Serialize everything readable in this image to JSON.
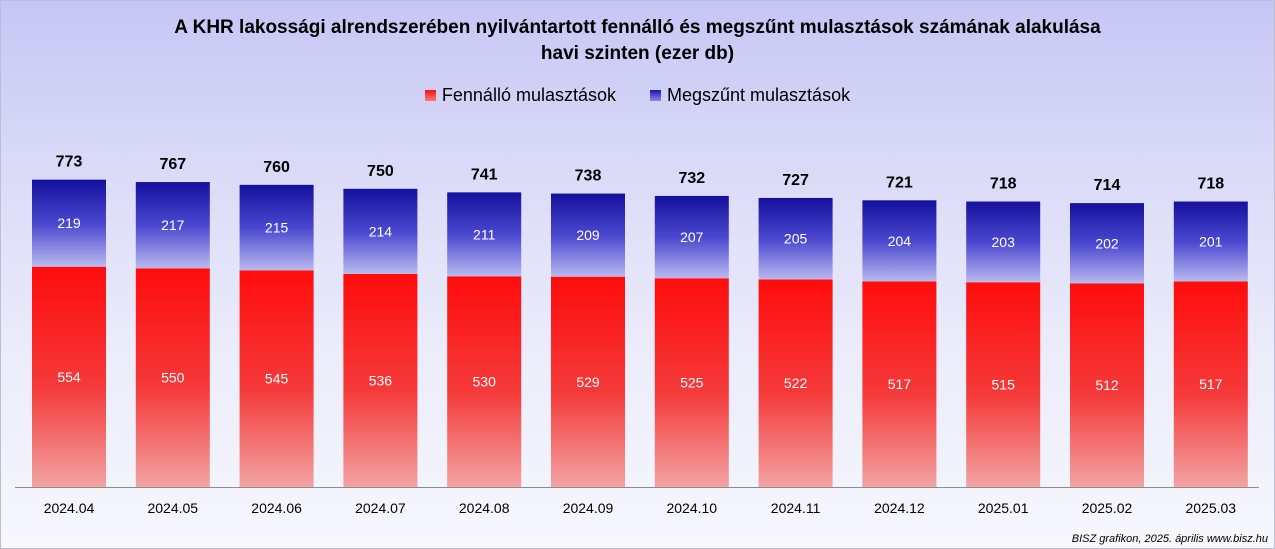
{
  "chart_data": {
    "type": "bar",
    "stacked": true,
    "title": "A KHR lakossági alrendszerében nyilvántartott fennálló és megszűnt mulasztások számának alakulása havi szinten (ezer db)",
    "title_lines": [
      "A KHR lakossági alrendszerében nyilvántartott fennálló és megszűnt mulasztások számának alakulása",
      "havi szinten (ezer db)"
    ],
    "categories": [
      "2024.04",
      "2024.05",
      "2024.06",
      "2024.07",
      "2024.08",
      "2024.09",
      "2024.10",
      "2024.11",
      "2024.12",
      "2025.01",
      "2025.02",
      "2025.03"
    ],
    "series": [
      {
        "name": "Fennálló mulasztások",
        "values": [
          554,
          550,
          545,
          536,
          530,
          529,
          525,
          522,
          517,
          515,
          512,
          517
        ],
        "color": "#ff1010"
      },
      {
        "name": "Megszűnt mulasztások",
        "values": [
          219,
          217,
          215,
          214,
          211,
          209,
          207,
          205,
          204,
          203,
          202,
          201
        ],
        "color": "#1a14b8"
      }
    ],
    "totals": [
      773,
      767,
      760,
      750,
      741,
      738,
      732,
      727,
      721,
      718,
      714,
      718
    ],
    "ylim": [
      0,
      850
    ],
    "grid": false,
    "legend_position": "top"
  },
  "source_note": "BISZ grafikon, 2025. április www.bisz.hu"
}
